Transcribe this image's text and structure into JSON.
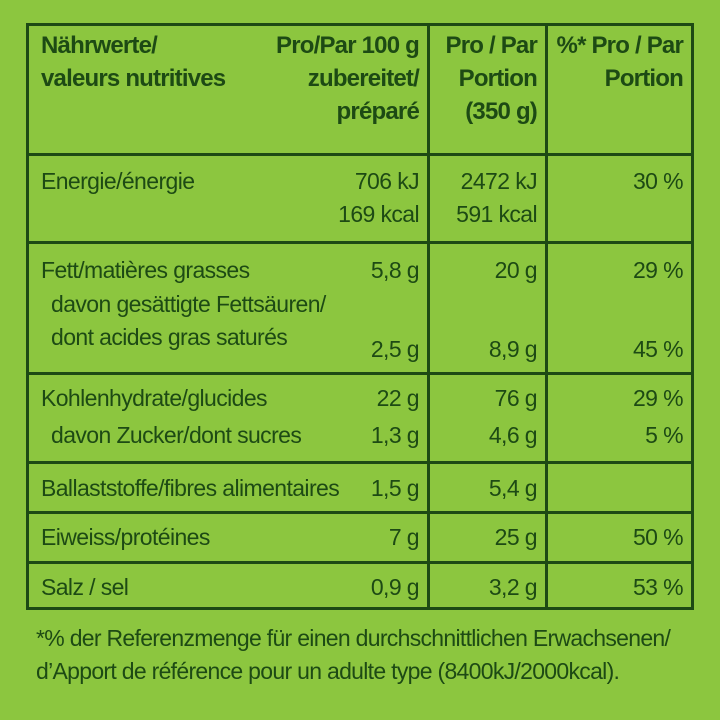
{
  "header": {
    "col1": [
      "Nährwerte/",
      "valeurs nutritives"
    ],
    "col2": [
      "Pro/Par 100 g",
      "zubereitet/",
      "préparé"
    ],
    "col3": [
      "Pro / Par",
      "Portion",
      "(350 g)"
    ],
    "col4": [
      "%* Pro / Par",
      "Portion"
    ]
  },
  "rows": {
    "energy": {
      "label": "Energie/énergie",
      "per100": [
        "706 kJ",
        "169 kcal"
      ],
      "portion": [
        "2472 kJ",
        "591 kcal"
      ],
      "pct": "30 %"
    },
    "fat": {
      "label": "Fett/matières grasses",
      "per100": "5,8 g",
      "portion": "20 g",
      "pct": "29 %",
      "sub_label": [
        "davon gesättigte Fettsäuren/",
        "dont acides gras saturés"
      ],
      "sub_per100": "2,5 g",
      "sub_portion": "8,9 g",
      "sub_pct": "45 %"
    },
    "carbs": {
      "label": "Kohlenhydrate/glucides",
      "per100": "22 g",
      "portion": "76 g",
      "pct": "29 %",
      "sub_label": "davon Zucker/dont sucres",
      "sub_per100": "1,3 g",
      "sub_portion": "4,6 g",
      "sub_pct": "5 %"
    },
    "fiber": {
      "label": "Ballaststoffe/fibres alimentaires",
      "per100": "1,5 g",
      "portion": "5,4 g"
    },
    "protein": {
      "label": "Eiweiss/protéines",
      "per100": "7 g",
      "portion": "25 g",
      "pct": "50 %"
    },
    "salt": {
      "label": "Salz / sel",
      "per100": "0,9 g",
      "portion": "3,2 g",
      "pct": "53 %"
    }
  },
  "footer": [
    "*% der Referenzmenge für einen durchschnittlichen Erwachsenen/",
    "d’Apport de référence pour un adulte type (8400kJ/2000kcal)."
  ]
}
